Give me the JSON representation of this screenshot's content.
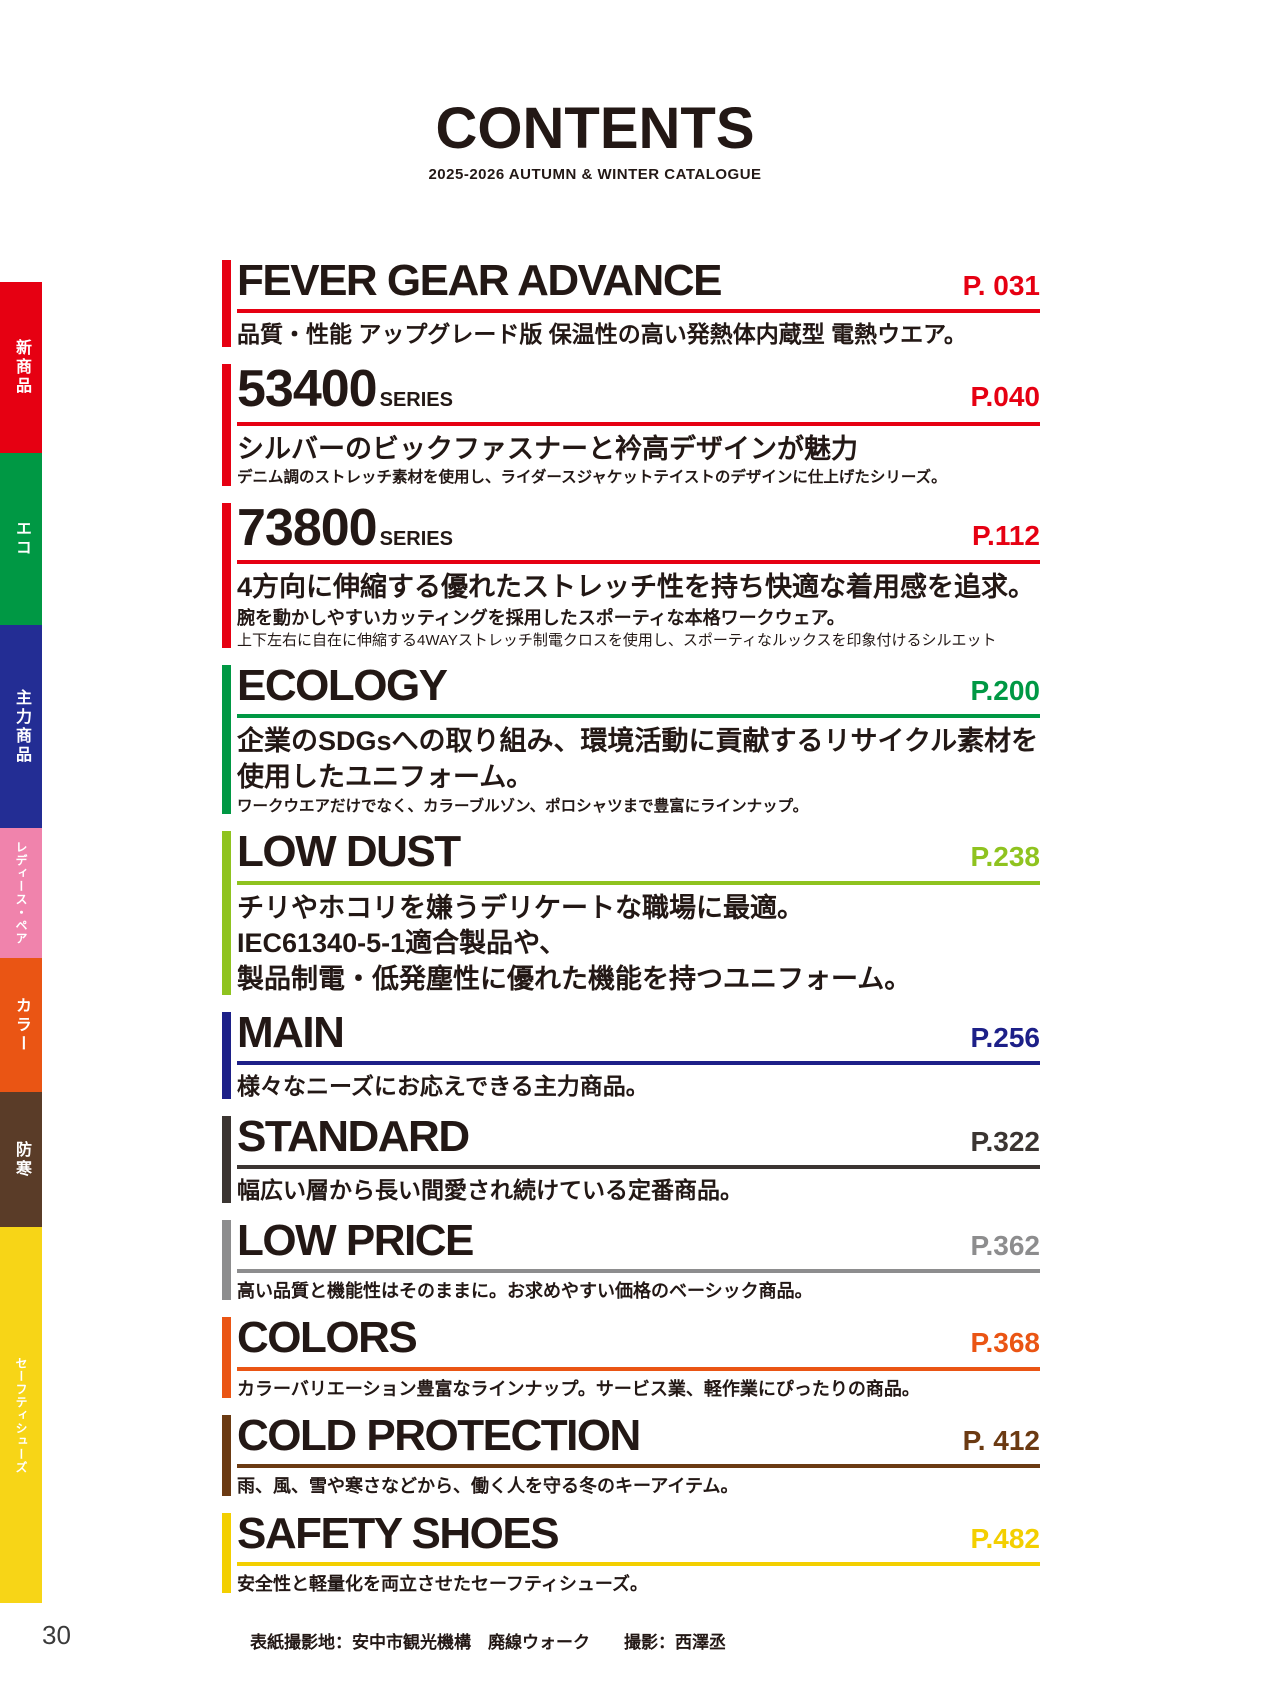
{
  "page": {
    "header": {
      "title": "CONTENTS",
      "subtitle": "2025-2026 AUTUMN & WINTER CATALOGUE"
    },
    "page_number": "30",
    "footer_credit": "表紙撮影地：安中市観光機構　廃線ウォーク　　撮影：西澤丞"
  },
  "sidebar": {
    "items": [
      {
        "id": "new-products",
        "label": "新商品",
        "color": "#e60012"
      },
      {
        "id": "eco",
        "label": "エコ",
        "color": "#009844"
      },
      {
        "id": "main-products",
        "label": "主力商品",
        "color": "#232d94"
      },
      {
        "id": "ladies-pair",
        "label": "レディース・ペア",
        "color": "#f083ac"
      },
      {
        "id": "color",
        "label": "カラー",
        "color": "#ea5514"
      },
      {
        "id": "cold",
        "label": "防寒",
        "color": "#5a3c28"
      },
      {
        "id": "safety-shoes",
        "label": "セーフティシューズ",
        "color": "#f7d517"
      }
    ]
  },
  "sections": [
    {
      "id": "fever-gear-advance",
      "title": "FEVER GEAR ADVANCE",
      "suffix": "",
      "page": "P. 031",
      "color": "#e60012",
      "desc": [
        {
          "text": "品質・性能 アップグレード版 保温性の高い発熱体内蔵型 電熱ウエア。",
          "size": "lg"
        }
      ]
    },
    {
      "id": "53400-series",
      "title": "53400",
      "suffix": "SERIES",
      "page": "P.040",
      "color": "#e60012",
      "desc": [
        {
          "text": "シルバーのビックファスナーと衿高デザインが魅力",
          "size": "xl"
        },
        {
          "text": "デニム調のストレッチ素材を使用し、ライダースジャケットテイストのデザインに仕上げたシリーズ。",
          "size": "sm"
        }
      ]
    },
    {
      "id": "73800-series",
      "title": "73800",
      "suffix": "SERIES",
      "page": "P.112",
      "color": "#e60012",
      "desc": [
        {
          "text": "4方向に伸縮する優れたストレッチ性を持ち快適な着用感を追求。",
          "size": "xl"
        },
        {
          "text": "腕を動かしやすいカッティングを採用したスポーティな本格ワークウェア。",
          "size": "md"
        },
        {
          "text": "上下左右に自在に伸縮する4WAYストレッチ制電クロスを使用し、スポーティなルックスを印象付けるシルエット",
          "size": "xs"
        }
      ]
    },
    {
      "id": "ecology",
      "title": "ECOLOGY",
      "suffix": "",
      "page": "P.200",
      "color": "#009844",
      "desc": [
        {
          "text": "企業のSDGsへの取り組み、環境活動に貢献するリサイクル素材を",
          "size": "xl"
        },
        {
          "text": "使用したユニフォーム。",
          "size": "xl"
        },
        {
          "text": "ワークウエアだけでなく、カラーブルゾン、ポロシャツまで豊富にラインナップ。",
          "size": "sm"
        }
      ]
    },
    {
      "id": "low-dust",
      "title": "LOW DUST",
      "suffix": "",
      "page": "P.238",
      "color": "#8fc31f",
      "desc": [
        {
          "text": "チリやホコリを嫌うデリケートな職場に最適。",
          "size": "xl"
        },
        {
          "text": "IEC61340-5-1適合製品や、",
          "size": "xl"
        },
        {
          "text": "製品制電・低発塵性に優れた機能を持つユニフォーム。",
          "size": "xl"
        }
      ]
    },
    {
      "id": "main",
      "title": "MAIN",
      "suffix": "",
      "page": "P.256",
      "color": "#1d2088",
      "desc": [
        {
          "text": "様々なニーズにお応えできる主力商品。",
          "size": "lg"
        }
      ]
    },
    {
      "id": "standard",
      "title": "STANDARD",
      "suffix": "",
      "page": "P.322",
      "color": "#3b3532",
      "desc": [
        {
          "text": "幅広い層から長い間愛され続けている定番商品。",
          "size": "lg"
        }
      ]
    },
    {
      "id": "low-price",
      "title": "LOW PRICE",
      "suffix": "",
      "page": "P.362",
      "color": "#8d8d8e",
      "desc": [
        {
          "text": "高い品質と機能性はそのままに。お求めやすい価格のベーシック商品。",
          "size": "md"
        }
      ]
    },
    {
      "id": "colors",
      "title": "COLORS",
      "suffix": "",
      "page": "P.368",
      "color": "#ea5514",
      "desc": [
        {
          "text": "カラーバリエーション豊富なラインナップ。サービス業、軽作業にぴったりの商品。",
          "size": "md"
        }
      ]
    },
    {
      "id": "cold-protection",
      "title": "COLD PROTECTION",
      "suffix": "",
      "page": "P. 412",
      "color": "#6b3a12",
      "desc": [
        {
          "text": "雨、風、雪や寒さなどから、働く人を守る冬のキーアイテム。",
          "size": "md"
        }
      ]
    },
    {
      "id": "safety-shoes",
      "title": "SAFETY SHOES",
      "suffix": "",
      "page": "P.482",
      "color": "#f3cf00",
      "desc": [
        {
          "text": "安全性と軽量化を両立させたセーフティシューズ。",
          "size": "md"
        }
      ]
    }
  ]
}
